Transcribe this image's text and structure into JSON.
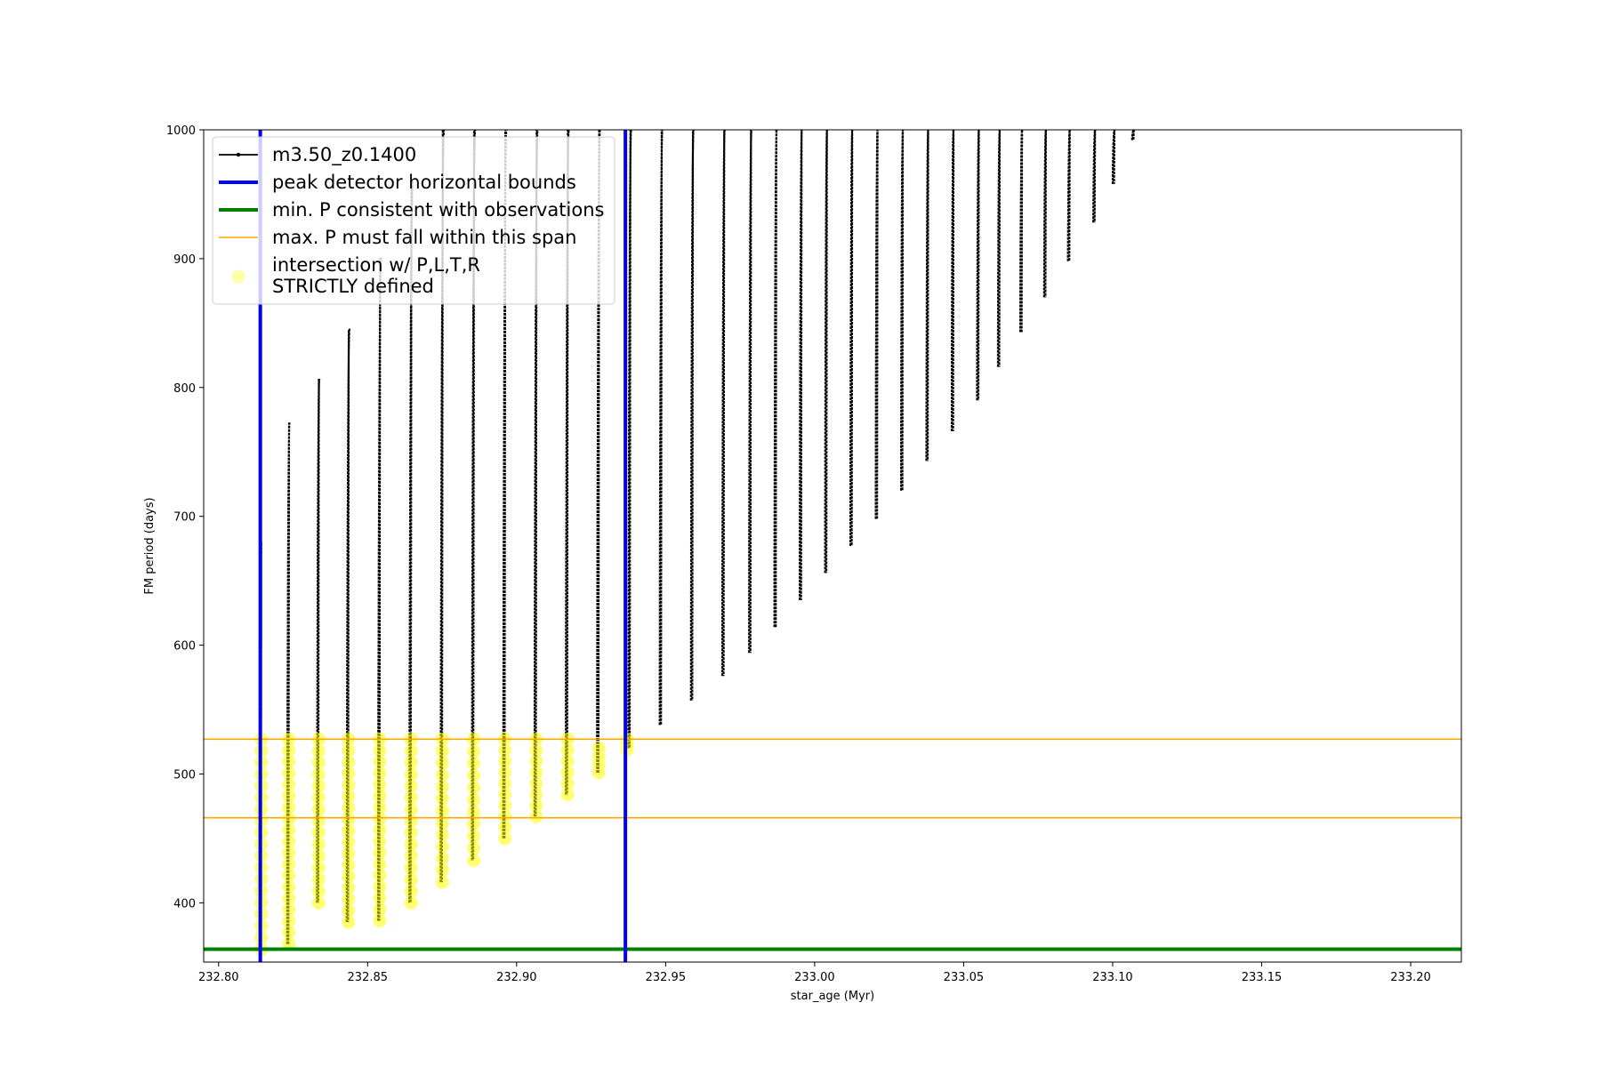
{
  "chart_data": {
    "type": "line",
    "title": "",
    "xlabel": "star_age (Myr)",
    "ylabel": "FM period (days)",
    "xlim": [
      232.795,
      233.217
    ],
    "ylim": [
      354,
      1000
    ],
    "grid": false,
    "legend_placement": "top-left",
    "x_ticks": [
      "232.80",
      "232.85",
      "232.90",
      "232.95",
      "233.00",
      "233.05",
      "233.10",
      "233.15",
      "233.20"
    ],
    "y_ticks": [
      "400",
      "500",
      "600",
      "700",
      "800",
      "900",
      "1000"
    ],
    "x_tick_values": [
      232.8,
      232.85,
      232.9,
      232.95,
      233.0,
      233.05,
      233.1,
      233.15,
      233.2
    ],
    "y_tick_values": [
      400,
      500,
      600,
      700,
      800,
      900,
      1000
    ],
    "series": [
      {
        "name": "m3.50_z0.1400",
        "color": "#000000",
        "style": "line-with-markers",
        "pulses": [
          {
            "x": 232.8137,
            "min": 364,
            "max": 680
          },
          {
            "x": 232.823,
            "min": 368,
            "max": 772
          },
          {
            "x": 232.833,
            "min": 400,
            "max": 806
          },
          {
            "x": 232.843,
            "min": 385,
            "max": 845
          },
          {
            "x": 232.8535,
            "min": 386,
            "max": 900
          },
          {
            "x": 232.864,
            "min": 400,
            "max": 960
          },
          {
            "x": 232.8745,
            "min": 416,
            "max": 1000
          },
          {
            "x": 232.885,
            "min": 433,
            "max": 1000
          },
          {
            "x": 232.8955,
            "min": 450,
            "max": 1000
          },
          {
            "x": 232.906,
            "min": 467,
            "max": 1000
          },
          {
            "x": 232.9165,
            "min": 484,
            "max": 1000
          },
          {
            "x": 232.927,
            "min": 501,
            "max": 1000
          },
          {
            "x": 232.9375,
            "min": 520,
            "max": 1000
          },
          {
            "x": 232.948,
            "min": 538,
            "max": 1000
          },
          {
            "x": 232.9585,
            "min": 557,
            "max": 1000
          },
          {
            "x": 232.969,
            "min": 576,
            "max": 1000
          },
          {
            "x": 232.978,
            "min": 594,
            "max": 1000
          },
          {
            "x": 232.9865,
            "min": 614,
            "max": 1000
          },
          {
            "x": 232.995,
            "min": 635,
            "max": 1000
          },
          {
            "x": 233.0035,
            "min": 656,
            "max": 1000
          },
          {
            "x": 233.012,
            "min": 677,
            "max": 1000
          },
          {
            "x": 233.0205,
            "min": 698,
            "max": 1000
          },
          {
            "x": 233.029,
            "min": 720,
            "max": 1000
          },
          {
            "x": 233.0375,
            "min": 743,
            "max": 1000
          },
          {
            "x": 233.046,
            "min": 766,
            "max": 1000
          },
          {
            "x": 233.0545,
            "min": 790,
            "max": 1000
          },
          {
            "x": 233.0615,
            "min": 816,
            "max": 1000
          },
          {
            "x": 233.069,
            "min": 843,
            "max": 1000
          },
          {
            "x": 233.077,
            "min": 870,
            "max": 1000
          },
          {
            "x": 233.085,
            "min": 898,
            "max": 1000
          },
          {
            "x": 233.0935,
            "min": 928,
            "max": 1000
          },
          {
            "x": 233.1,
            "min": 958,
            "max": 1000
          },
          {
            "x": 233.1065,
            "min": 992,
            "max": 1000
          }
        ]
      },
      {
        "name": "peak detector horizontal bounds",
        "color": "#0000ff",
        "style": "vline",
        "x": [
          232.814,
          232.9365
        ]
      },
      {
        "name": "min. P consistent with observations",
        "color": "#008000",
        "style": "hline",
        "y": [
          364
        ]
      },
      {
        "name": "max. P must fall within this span",
        "color": "#ffa500",
        "style": "hline",
        "y": [
          466,
          527
        ]
      },
      {
        "name": "intersection w/ P,L,T,R\nSTRICTLY defined",
        "color": "#ffff00",
        "style": "scatter",
        "clusters": [
          {
            "x": 232.8137,
            "min": 364,
            "max": 527
          },
          {
            "x": 232.823,
            "min": 368,
            "max": 527
          },
          {
            "x": 232.833,
            "min": 400,
            "max": 527
          },
          {
            "x": 232.843,
            "min": 385,
            "max": 527
          },
          {
            "x": 232.8535,
            "min": 386,
            "max": 527
          },
          {
            "x": 232.864,
            "min": 400,
            "max": 527
          },
          {
            "x": 232.8745,
            "min": 416,
            "max": 527
          },
          {
            "x": 232.885,
            "min": 433,
            "max": 527
          },
          {
            "x": 232.8955,
            "min": 450,
            "max": 527
          },
          {
            "x": 232.906,
            "min": 467,
            "max": 527
          },
          {
            "x": 232.9165,
            "min": 484,
            "max": 527
          },
          {
            "x": 232.927,
            "min": 501,
            "max": 520
          },
          {
            "x": 232.9365,
            "min": 519,
            "max": 527
          }
        ]
      }
    ],
    "legend": {
      "entries": [
        {
          "label": "m3.50_z0.1400",
          "color": "#000000",
          "style": "line-with-markers"
        },
        {
          "label": "peak detector horizontal bounds",
          "color": "#0000ff",
          "style": "thick-line"
        },
        {
          "label": "min. P consistent with observations",
          "color": "#008000",
          "style": "thick-line"
        },
        {
          "label": "max. P must fall within this span",
          "color": "#ffa500",
          "style": "thin-line"
        },
        {
          "label": "intersection w/ P,L,T,R",
          "label_line2": "STRICTLY defined",
          "color": "#ffff00",
          "style": "marker"
        }
      ]
    }
  }
}
